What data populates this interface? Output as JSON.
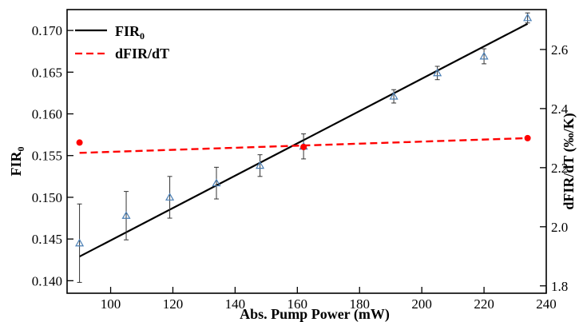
{
  "chart_data": {
    "type": "scatter",
    "xlabel": "Abs. Pump Power (mW)",
    "ylabel_left": "FIR",
    "ylabel_left_subscript": "0",
    "ylabel_right": "dFIR/dT (‰/K)",
    "xlim": [
      86,
      240
    ],
    "ylim_left": [
      0.1385,
      0.1725
    ],
    "ylim_right": [
      1.775,
      2.735
    ],
    "x_ticks": [
      100,
      120,
      140,
      160,
      180,
      200,
      220,
      240
    ],
    "y_left_ticks": [
      0.14,
      0.145,
      0.15,
      0.155,
      0.16,
      0.165,
      0.17
    ],
    "y_left_tick_labels": [
      "0.140",
      "0.145",
      "0.150",
      "0.155",
      "0.160",
      "0.165",
      "0.170"
    ],
    "y_right_ticks": [
      1.8,
      2.0,
      2.2,
      2.4,
      2.6
    ],
    "y_right_tick_labels": [
      "1.8",
      "2.0",
      "2.2",
      "2.4",
      "2.6"
    ],
    "legend": {
      "placement": "top-left",
      "entries": [
        {
          "label": "FIR",
          "subscript": "0",
          "style": "solid",
          "color": "#000000"
        },
        {
          "label": "dFIR/dT",
          "subscript": "",
          "style": "dashed",
          "color": "#ff0000"
        }
      ]
    },
    "fir_points": {
      "marker": "triangle",
      "color": "#4a7fb5",
      "x": [
        90,
        105,
        119,
        134,
        148,
        162,
        191,
        205,
        220,
        234
      ],
      "y": [
        0.1445,
        0.1478,
        0.15,
        0.1517,
        0.1538,
        0.1561,
        0.1621,
        0.1649,
        0.1669,
        0.1715
      ],
      "err": [
        0.0047,
        0.0029,
        0.0025,
        0.0019,
        0.0013,
        0.0015,
        0.0008,
        0.0008,
        0.0009,
        0.0006
      ]
    },
    "fir_fit": {
      "x": [
        90,
        234
      ],
      "y": [
        0.1429,
        0.1708
      ],
      "color": "#000000"
    },
    "dfir_points": {
      "color": "#ff0000",
      "x": [
        90,
        162,
        234
      ],
      "y": [
        2.285,
        2.27,
        2.3
      ]
    },
    "dfir_fit": {
      "x": [
        90,
        234
      ],
      "y": [
        2.25,
        2.3
      ],
      "color": "#ff0000"
    }
  }
}
